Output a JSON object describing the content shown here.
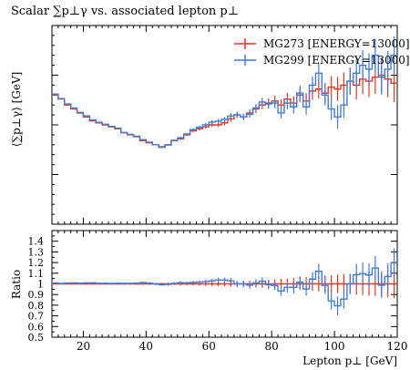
{
  "chart_data": {
    "type": "line",
    "title": "Scalar ∑p⊥γ vs. associated lepton p⊥",
    "xlabel": "Lepton p⊥ [GeV]",
    "ylabel": "⟨∑p⊥γ⟩ [GeV]",
    "ratio_ylabel": "Ratio",
    "xlim": [
      10,
      120
    ],
    "main_ylim": [
      0,
      1
    ],
    "ratio_ylim": [
      0.5,
      1.5
    ],
    "x_ticks": [
      20,
      40,
      60,
      80,
      100,
      120
    ],
    "ratio_ticks": [
      0.5,
      0.6,
      0.7,
      0.8,
      0.9,
      1,
      1.1,
      1.2,
      1.3,
      1.4
    ],
    "legend_position": "top-right",
    "bin_edges": [
      10,
      12,
      14,
      16,
      18,
      20,
      22,
      24,
      26,
      28,
      30,
      32,
      34,
      36,
      38,
      40,
      42,
      44,
      46,
      48,
      50,
      52,
      54,
      56,
      58,
      60,
      62,
      64,
      66,
      68,
      70,
      72,
      74,
      76,
      78,
      80,
      82,
      84,
      86,
      88,
      90,
      92,
      94,
      96,
      98,
      100,
      102,
      104,
      106,
      108,
      110,
      112,
      114,
      116,
      118,
      120
    ],
    "series": [
      {
        "name": "MG273 [ENERGY=13000]",
        "color": "#e8341c",
        "values": [
          0.65,
          0.63,
          0.6,
          0.58,
          0.56,
          0.54,
          0.52,
          0.51,
          0.5,
          0.49,
          0.48,
          0.46,
          0.45,
          0.44,
          0.42,
          0.41,
          0.4,
          0.39,
          0.4,
          0.42,
          0.43,
          0.45,
          0.47,
          0.48,
          0.49,
          0.5,
          0.5,
          0.51,
          0.53,
          0.55,
          0.54,
          0.56,
          0.58,
          0.6,
          0.61,
          0.62,
          0.6,
          0.63,
          0.61,
          0.65,
          0.62,
          0.67,
          0.68,
          0.66,
          0.69,
          0.68,
          0.7,
          0.72,
          0.7,
          0.73,
          0.72,
          0.74,
          0.75,
          0.73,
          0.71
        ],
        "errors": [
          0.004,
          0.004,
          0.004,
          0.004,
          0.004,
          0.004,
          0.004,
          0.004,
          0.004,
          0.004,
          0.004,
          0.004,
          0.004,
          0.004,
          0.004,
          0.004,
          0.004,
          0.004,
          0.005,
          0.005,
          0.006,
          0.006,
          0.007,
          0.008,
          0.009,
          0.01,
          0.011,
          0.012,
          0.014,
          0.015,
          0.016,
          0.018,
          0.02,
          0.022,
          0.024,
          0.026,
          0.028,
          0.031,
          0.034,
          0.037,
          0.04,
          0.044,
          0.048,
          0.052,
          0.056,
          0.06,
          0.064,
          0.068,
          0.072,
          0.076,
          0.08,
          0.084,
          0.088,
          0.092,
          0.096
        ]
      },
      {
        "name": "MG299 [ENERGY=13000]",
        "color": "#3e7bdb",
        "values": [
          0.655,
          0.632,
          0.605,
          0.585,
          0.563,
          0.545,
          0.525,
          0.513,
          0.503,
          0.492,
          0.483,
          0.462,
          0.452,
          0.443,
          0.425,
          0.413,
          0.4,
          0.387,
          0.398,
          0.422,
          0.435,
          0.454,
          0.476,
          0.488,
          0.5,
          0.514,
          0.518,
          0.528,
          0.545,
          0.55,
          0.54,
          0.553,
          0.585,
          0.615,
          0.605,
          0.61,
          0.56,
          0.61,
          0.59,
          0.66,
          0.59,
          0.7,
          0.76,
          0.65,
          0.58,
          0.54,
          0.6,
          0.72,
          0.76,
          0.8,
          0.78,
          0.85,
          0.74,
          0.78,
          0.85
        ],
        "errors": [
          0.004,
          0.004,
          0.004,
          0.004,
          0.004,
          0.004,
          0.004,
          0.004,
          0.004,
          0.004,
          0.004,
          0.004,
          0.004,
          0.004,
          0.004,
          0.004,
          0.004,
          0.004,
          0.005,
          0.005,
          0.006,
          0.006,
          0.007,
          0.008,
          0.009,
          0.01,
          0.011,
          0.012,
          0.014,
          0.015,
          0.016,
          0.018,
          0.02,
          0.022,
          0.024,
          0.026,
          0.028,
          0.031,
          0.034,
          0.037,
          0.04,
          0.044,
          0.048,
          0.052,
          0.056,
          0.06,
          0.064,
          0.068,
          0.072,
          0.076,
          0.08,
          0.084,
          0.088,
          0.092,
          0.096
        ]
      }
    ]
  }
}
